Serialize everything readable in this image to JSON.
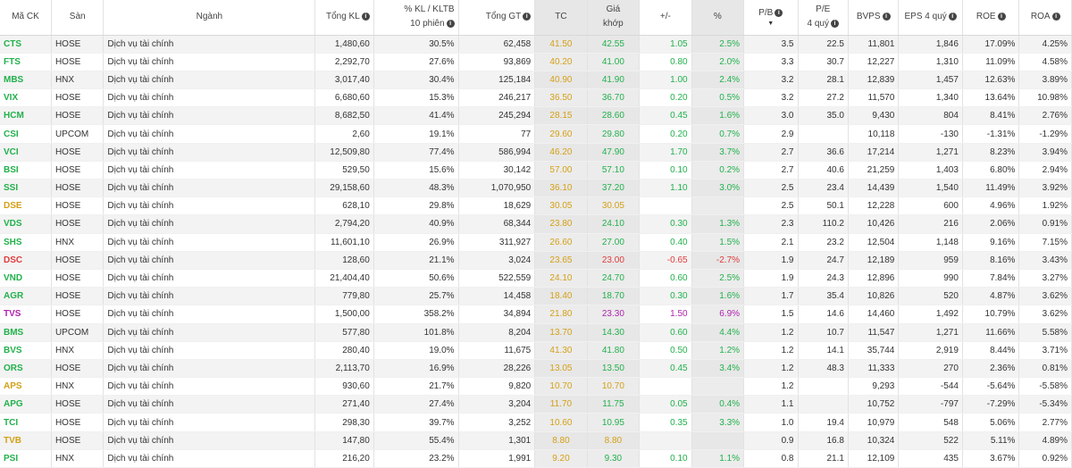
{
  "colors": {
    "up": "#22b14c",
    "ref": "#d4a017",
    "down": "#e03b3b",
    "ceiling": "#b023b0"
  },
  "headers": {
    "ticker": "Mã CK",
    "exchange": "Sàn",
    "industry": "Ngành",
    "volume": "Tổng KL",
    "vol_ratio_l1": "% KL / KLTB",
    "vol_ratio_l2": "10 phiên",
    "value": "Tổng GT",
    "ref": "TC",
    "match_l1": "Giá",
    "match_l2": "khớp",
    "change": "+/-",
    "pct": "%",
    "pb": "P/B",
    "pe_l1": "P/E",
    "pe_l2": "4 quý",
    "bvps": "BVPS",
    "eps": "EPS 4 quý",
    "roe": "ROE",
    "roa": "ROA"
  },
  "rows": [
    {
      "ticker": "CTS",
      "color": "up",
      "exchange": "HOSE",
      "industry": "Dịch vụ tài chính",
      "volume": "1,480,60",
      "vol_ratio": "30.5%",
      "value": "62,458",
      "ref": "41.50",
      "match": "42.55",
      "change": "1.05",
      "pct": "2.5%",
      "pb": "3.5",
      "pe": "22.5",
      "bvps": "11,801",
      "eps": "1,846",
      "roe": "17.09%",
      "roa": "4.25%"
    },
    {
      "ticker": "FTS",
      "color": "up",
      "exchange": "HOSE",
      "industry": "Dịch vụ tài chính",
      "volume": "2,292,70",
      "vol_ratio": "27.6%",
      "value": "93,869",
      "ref": "40.20",
      "match": "41.00",
      "change": "0.80",
      "pct": "2.0%",
      "pb": "3.3",
      "pe": "30.7",
      "bvps": "12,227",
      "eps": "1,310",
      "roe": "11.09%",
      "roa": "4.58%"
    },
    {
      "ticker": "MBS",
      "color": "up",
      "exchange": "HNX",
      "industry": "Dịch vụ tài chính",
      "volume": "3,017,40",
      "vol_ratio": "30.4%",
      "value": "125,184",
      "ref": "40.90",
      "match": "41.90",
      "change": "1.00",
      "pct": "2.4%",
      "pb": "3.2",
      "pe": "28.1",
      "bvps": "12,839",
      "eps": "1,457",
      "roe": "12.63%",
      "roa": "3.89%"
    },
    {
      "ticker": "VIX",
      "color": "up",
      "exchange": "HOSE",
      "industry": "Dịch vụ tài chính",
      "volume": "6,680,60",
      "vol_ratio": "15.3%",
      "value": "246,217",
      "ref": "36.50",
      "match": "36.70",
      "change": "0.20",
      "pct": "0.5%",
      "pb": "3.2",
      "pe": "27.2",
      "bvps": "11,570",
      "eps": "1,340",
      "roe": "13.64%",
      "roa": "10.98%"
    },
    {
      "ticker": "HCM",
      "color": "up",
      "exchange": "HOSE",
      "industry": "Dịch vụ tài chính",
      "volume": "8,682,50",
      "vol_ratio": "41.4%",
      "value": "245,294",
      "ref": "28.15",
      "match": "28.60",
      "change": "0.45",
      "pct": "1.6%",
      "pb": "3.0",
      "pe": "35.0",
      "bvps": "9,430",
      "eps": "804",
      "roe": "8.41%",
      "roa": "2.76%"
    },
    {
      "ticker": "CSI",
      "color": "up",
      "exchange": "UPCOM",
      "industry": "Dịch vụ tài chính",
      "volume": "2,60",
      "vol_ratio": "19.1%",
      "value": "77",
      "ref": "29.60",
      "match": "29.80",
      "change": "0.20",
      "pct": "0.7%",
      "pb": "2.9",
      "pe": "",
      "bvps": "10,118",
      "eps": "-130",
      "roe": "-1.31%",
      "roa": "-1.29%"
    },
    {
      "ticker": "VCI",
      "color": "up",
      "exchange": "HOSE",
      "industry": "Dịch vụ tài chính",
      "volume": "12,509,80",
      "vol_ratio": "77.4%",
      "value": "586,994",
      "ref": "46.20",
      "match": "47.90",
      "change": "1.70",
      "pct": "3.7%",
      "pb": "2.7",
      "pe": "36.6",
      "bvps": "17,214",
      "eps": "1,271",
      "roe": "8.23%",
      "roa": "3.94%"
    },
    {
      "ticker": "BSI",
      "color": "up",
      "exchange": "HOSE",
      "industry": "Dịch vụ tài chính",
      "volume": "529,50",
      "vol_ratio": "15.6%",
      "value": "30,142",
      "ref": "57.00",
      "match": "57.10",
      "change": "0.10",
      "pct": "0.2%",
      "pb": "2.7",
      "pe": "40.6",
      "bvps": "21,259",
      "eps": "1,403",
      "roe": "6.80%",
      "roa": "2.94%"
    },
    {
      "ticker": "SSI",
      "color": "up",
      "exchange": "HOSE",
      "industry": "Dịch vụ tài chính",
      "volume": "29,158,60",
      "vol_ratio": "48.3%",
      "value": "1,070,950",
      "ref": "36.10",
      "match": "37.20",
      "change": "1.10",
      "pct": "3.0%",
      "pb": "2.5",
      "pe": "23.4",
      "bvps": "14,439",
      "eps": "1,540",
      "roe": "11.49%",
      "roa": "3.92%"
    },
    {
      "ticker": "DSE",
      "color": "ref",
      "exchange": "HOSE",
      "industry": "Dịch vụ tài chính",
      "volume": "628,10",
      "vol_ratio": "29.8%",
      "value": "18,629",
      "ref": "30.05",
      "match": "30.05",
      "change": "",
      "pct": "",
      "pb": "2.5",
      "pe": "50.1",
      "bvps": "12,228",
      "eps": "600",
      "roe": "4.96%",
      "roa": "1.92%"
    },
    {
      "ticker": "VDS",
      "color": "up",
      "exchange": "HOSE",
      "industry": "Dịch vụ tài chính",
      "volume": "2,794,20",
      "vol_ratio": "40.9%",
      "value": "68,344",
      "ref": "23.80",
      "match": "24.10",
      "change": "0.30",
      "pct": "1.3%",
      "pb": "2.3",
      "pe": "110.2",
      "bvps": "10,426",
      "eps": "216",
      "roe": "2.06%",
      "roa": "0.91%"
    },
    {
      "ticker": "SHS",
      "color": "up",
      "exchange": "HNX",
      "industry": "Dịch vụ tài chính",
      "volume": "11,601,10",
      "vol_ratio": "26.9%",
      "value": "311,927",
      "ref": "26.60",
      "match": "27.00",
      "change": "0.40",
      "pct": "1.5%",
      "pb": "2.1",
      "pe": "23.2",
      "bvps": "12,504",
      "eps": "1,148",
      "roe": "9.16%",
      "roa": "7.15%"
    },
    {
      "ticker": "DSC",
      "color": "down",
      "exchange": "HOSE",
      "industry": "Dịch vụ tài chính",
      "volume": "128,60",
      "vol_ratio": "21.1%",
      "value": "3,024",
      "ref": "23.65",
      "match": "23.00",
      "change": "-0.65",
      "pct": "-2.7%",
      "pb": "1.9",
      "pe": "24.7",
      "bvps": "12,189",
      "eps": "959",
      "roe": "8.16%",
      "roa": "3.43%"
    },
    {
      "ticker": "VND",
      "color": "up",
      "exchange": "HOSE",
      "industry": "Dịch vụ tài chính",
      "volume": "21,404,40",
      "vol_ratio": "50.6%",
      "value": "522,559",
      "ref": "24.10",
      "match": "24.70",
      "change": "0.60",
      "pct": "2.5%",
      "pb": "1.9",
      "pe": "24.3",
      "bvps": "12,896",
      "eps": "990",
      "roe": "7.84%",
      "roa": "3.27%"
    },
    {
      "ticker": "AGR",
      "color": "up",
      "exchange": "HOSE",
      "industry": "Dịch vụ tài chính",
      "volume": "779,80",
      "vol_ratio": "25.7%",
      "value": "14,458",
      "ref": "18.40",
      "match": "18.70",
      "change": "0.30",
      "pct": "1.6%",
      "pb": "1.7",
      "pe": "35.4",
      "bvps": "10,826",
      "eps": "520",
      "roe": "4.87%",
      "roa": "3.62%"
    },
    {
      "ticker": "TVS",
      "color": "ceiling",
      "exchange": "HOSE",
      "industry": "Dịch vụ tài chính",
      "volume": "1,500,00",
      "vol_ratio": "358.2%",
      "value": "34,894",
      "ref": "21.80",
      "match": "23.30",
      "change": "1.50",
      "pct": "6.9%",
      "pb": "1.5",
      "pe": "14.6",
      "bvps": "14,460",
      "eps": "1,492",
      "roe": "10.79%",
      "roa": "3.62%"
    },
    {
      "ticker": "BMS",
      "color": "up",
      "exchange": "UPCOM",
      "industry": "Dịch vụ tài chính",
      "volume": "577,80",
      "vol_ratio": "101.8%",
      "value": "8,204",
      "ref": "13.70",
      "match": "14.30",
      "change": "0.60",
      "pct": "4.4%",
      "pb": "1.2",
      "pe": "10.7",
      "bvps": "11,547",
      "eps": "1,271",
      "roe": "11.66%",
      "roa": "5.58%"
    },
    {
      "ticker": "BVS",
      "color": "up",
      "exchange": "HNX",
      "industry": "Dịch vụ tài chính",
      "volume": "280,40",
      "vol_ratio": "19.0%",
      "value": "11,675",
      "ref": "41.30",
      "match": "41.80",
      "change": "0.50",
      "pct": "1.2%",
      "pb": "1.2",
      "pe": "14.1",
      "bvps": "35,744",
      "eps": "2,919",
      "roe": "8.44%",
      "roa": "3.71%"
    },
    {
      "ticker": "ORS",
      "color": "up",
      "exchange": "HOSE",
      "industry": "Dịch vụ tài chính",
      "volume": "2,113,70",
      "vol_ratio": "16.9%",
      "value": "28,226",
      "ref": "13.05",
      "match": "13.50",
      "change": "0.45",
      "pct": "3.4%",
      "pb": "1.2",
      "pe": "48.3",
      "bvps": "11,333",
      "eps": "270",
      "roe": "2.36%",
      "roa": "0.81%"
    },
    {
      "ticker": "APS",
      "color": "ref",
      "exchange": "HNX",
      "industry": "Dịch vụ tài chính",
      "volume": "930,60",
      "vol_ratio": "21.7%",
      "value": "9,820",
      "ref": "10.70",
      "match": "10.70",
      "change": "",
      "pct": "",
      "pb": "1.2",
      "pe": "",
      "bvps": "9,293",
      "eps": "-544",
      "roe": "-5.64%",
      "roa": "-5.58%"
    },
    {
      "ticker": "APG",
      "color": "up",
      "exchange": "HOSE",
      "industry": "Dịch vụ tài chính",
      "volume": "271,40",
      "vol_ratio": "27.4%",
      "value": "3,204",
      "ref": "11.70",
      "match": "11.75",
      "change": "0.05",
      "pct": "0.4%",
      "pb": "1.1",
      "pe": "",
      "bvps": "10,752",
      "eps": "-797",
      "roe": "-7.29%",
      "roa": "-5.34%"
    },
    {
      "ticker": "TCI",
      "color": "up",
      "exchange": "HOSE",
      "industry": "Dịch vụ tài chính",
      "volume": "298,30",
      "vol_ratio": "39.7%",
      "value": "3,252",
      "ref": "10.60",
      "match": "10.95",
      "change": "0.35",
      "pct": "3.3%",
      "pb": "1.0",
      "pe": "19.4",
      "bvps": "10,979",
      "eps": "548",
      "roe": "5.06%",
      "roa": "2.77%"
    },
    {
      "ticker": "TVB",
      "color": "ref",
      "exchange": "HOSE",
      "industry": "Dịch vụ tài chính",
      "volume": "147,80",
      "vol_ratio": "55.4%",
      "value": "1,301",
      "ref": "8.80",
      "match": "8.80",
      "change": "",
      "pct": "",
      "pb": "0.9",
      "pe": "16.8",
      "bvps": "10,324",
      "eps": "522",
      "roe": "5.11%",
      "roa": "4.89%"
    },
    {
      "ticker": "PSI",
      "color": "up",
      "exchange": "HNX",
      "industry": "Dịch vụ tài chính",
      "volume": "216,20",
      "vol_ratio": "23.2%",
      "value": "1,991",
      "ref": "9.20",
      "match": "9.30",
      "change": "0.10",
      "pct": "1.1%",
      "pb": "0.8",
      "pe": "21.1",
      "bvps": "12,109",
      "eps": "435",
      "roe": "3.67%",
      "roa": "0.92%"
    }
  ]
}
